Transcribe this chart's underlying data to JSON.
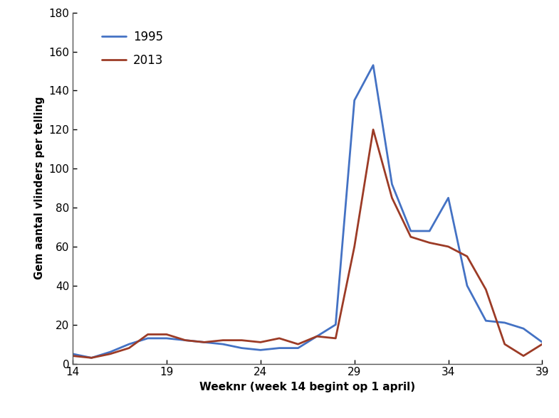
{
  "weeks": [
    14,
    15,
    16,
    17,
    18,
    19,
    20,
    21,
    22,
    23,
    24,
    25,
    26,
    27,
    28,
    29,
    30,
    31,
    32,
    33,
    34,
    35,
    36,
    37,
    38,
    39
  ],
  "values_1995": [
    5,
    3,
    6,
    10,
    13,
    13,
    12,
    11,
    10,
    8,
    7,
    8,
    8,
    14,
    20,
    135,
    153,
    92,
    68,
    68,
    85,
    40,
    22,
    21,
    18,
    11
  ],
  "values_2013": [
    4,
    3,
    5,
    8,
    15,
    15,
    12,
    11,
    12,
    12,
    11,
    13,
    10,
    14,
    13,
    60,
    120,
    85,
    65,
    62,
    60,
    55,
    38,
    10,
    4,
    10
  ],
  "color_1995": "#4472C4",
  "color_2013": "#9C3B26",
  "xlabel": "Weeknr (week 14 begint op 1 april)",
  "ylabel": "Gem aantal vlinders per telling",
  "ylim": [
    0,
    180
  ],
  "xlim": [
    14,
    39
  ],
  "yticks": [
    0,
    20,
    40,
    60,
    80,
    100,
    120,
    140,
    160,
    180
  ],
  "xticks": [
    14,
    19,
    24,
    29,
    34,
    39
  ],
  "legend_labels": [
    "1995",
    "2013"
  ],
  "linewidth": 2.0,
  "figsize": [
    7.85,
    5.88
  ],
  "dpi": 100
}
